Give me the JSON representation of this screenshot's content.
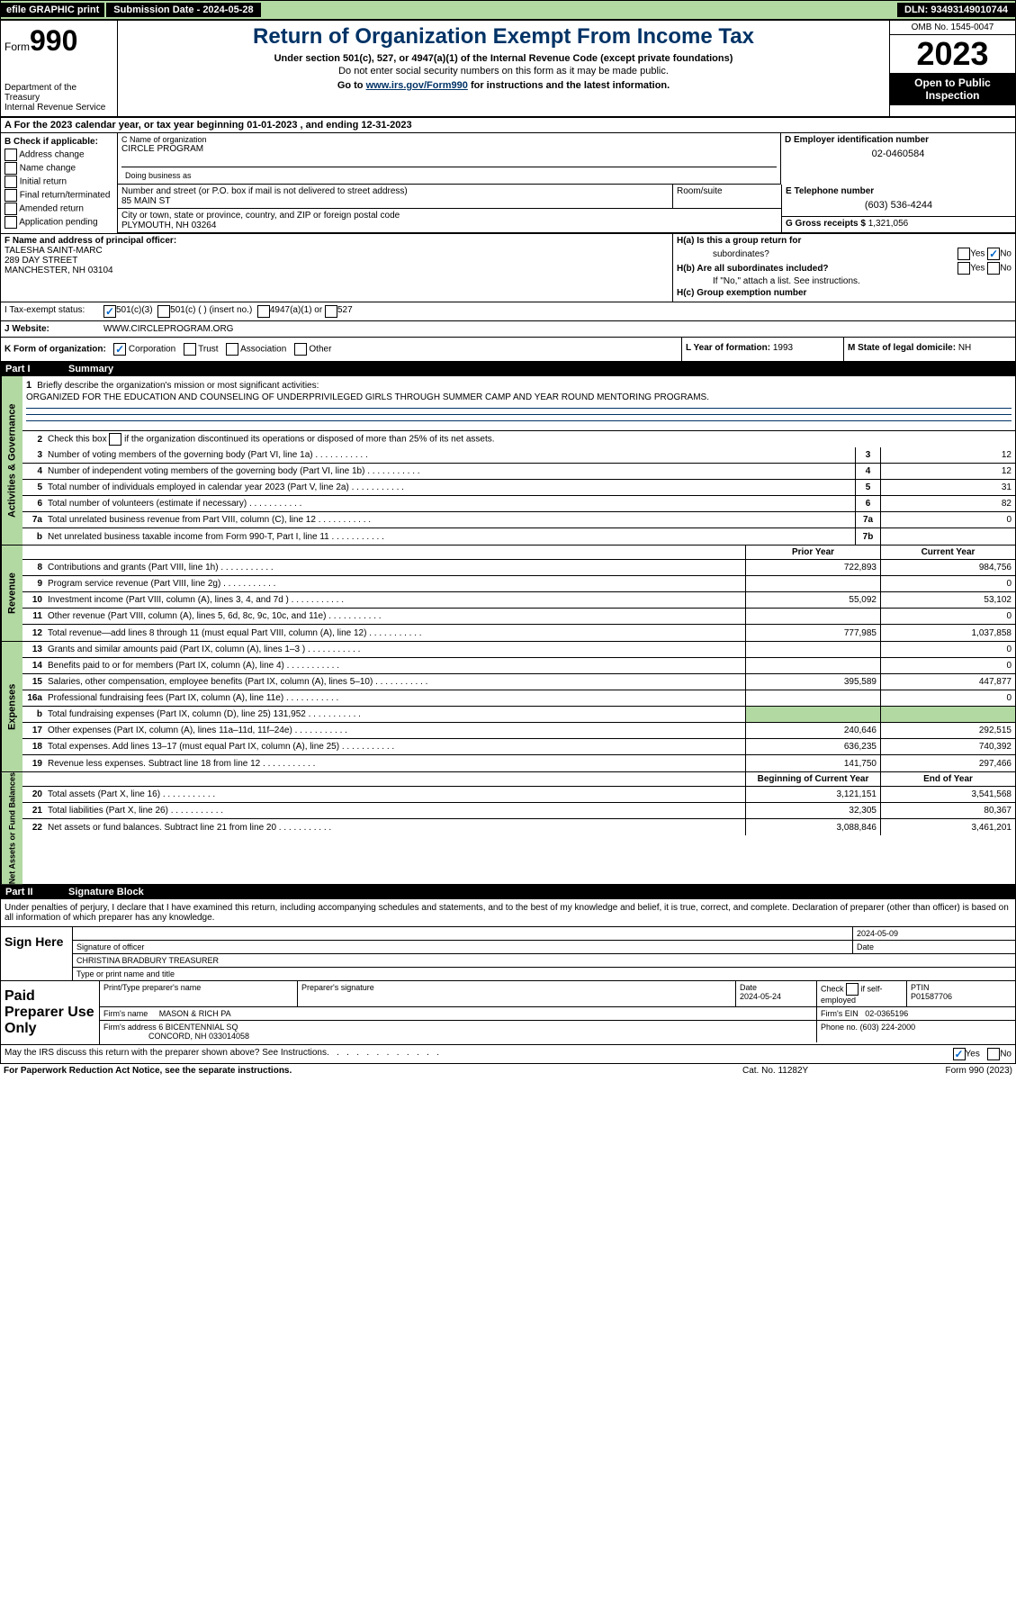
{
  "topbar": {
    "efile": "efile GRAPHIC print",
    "submission": "Submission Date - 2024-05-28",
    "dln": "DLN: 93493149010744"
  },
  "header": {
    "form_prefix": "Form",
    "form_num": "990",
    "title": "Return of Organization Exempt From Income Tax",
    "subtitle": "Under section 501(c), 527, or 4947(a)(1) of the Internal Revenue Code (except private foundations)",
    "ssn_note": "Do not enter social security numbers on this form as it may be made public.",
    "goto_pre": "Go to ",
    "goto_link": "www.irs.gov/Form990",
    "goto_post": " for instructions and the latest information.",
    "dept": "Department of the Treasury",
    "irs": "Internal Revenue Service",
    "omb": "OMB No. 1545-0047",
    "year": "2023",
    "open": "Open to Public Inspection"
  },
  "section_a": {
    "pre": "A  For the 2023 calendar year, or tax year beginning ",
    "begin": "01-01-2023",
    "mid": " , and ending ",
    "end": "12-31-2023"
  },
  "col_b": {
    "title": "B Check if applicable:",
    "items": [
      "Address change",
      "Name change",
      "Initial return",
      "Final return/terminated",
      "Amended return",
      "Application pending"
    ]
  },
  "col_c": {
    "name_lbl": "C Name of organization",
    "name_val": "CIRCLE PROGRAM",
    "dba_lbl": "Doing business as",
    "street_lbl": "Number and street (or P.O. box if mail is not delivered to street address)",
    "street_val": "85 MAIN ST",
    "suite_lbl": "Room/suite",
    "city_lbl": "City or town, state or province, country, and ZIP or foreign postal code",
    "city_val": "PLYMOUTH, NH  03264"
  },
  "col_d": {
    "lbl": "D Employer identification number",
    "val": "02-0460584"
  },
  "col_e": {
    "lbl": "E Telephone number",
    "val": "(603) 536-4244"
  },
  "col_g": {
    "lbl": "G Gross receipts $",
    "val": "1,321,056"
  },
  "col_f": {
    "lbl": "F  Name and address of principal officer:",
    "name": "TALESHA SAINT-MARC",
    "street": "289 DAY STREET",
    "city": "MANCHESTER, NH  03104"
  },
  "col_h": {
    "ha": "H(a)  Is this a group return for",
    "ha2": "subordinates?",
    "hb": "H(b)  Are all subordinates included?",
    "hb_note": "If \"No,\" attach a list. See instructions.",
    "hc": "H(c)  Group exemption number",
    "yes": "Yes",
    "no": "No"
  },
  "tax_status": {
    "lbl": "I    Tax-exempt status:",
    "o1": "501(c)(3)",
    "o2": "501(c) (  ) (insert no.)",
    "o3": "4947(a)(1) or",
    "o4": "527"
  },
  "website": {
    "lbl": "J   Website:",
    "val": "WWW.CIRCLEPROGRAM.ORG"
  },
  "row_k": {
    "lbl": "K Form of organization:",
    "corp": "Corporation",
    "trust": "Trust",
    "assoc": "Association",
    "other": "Other"
  },
  "row_l": {
    "lbl": "L Year of formation:",
    "val": "1993"
  },
  "row_m": {
    "lbl": "M State of legal domicile:",
    "val": "NH"
  },
  "part1": {
    "num": "Part I",
    "title": "Summary"
  },
  "mission": {
    "num": "1",
    "intro": "Briefly describe the organization's mission or most significant activities:",
    "text": "ORGANIZED FOR THE EDUCATION AND COUNSELING OF UNDERPRIVILEGED GIRLS THROUGH SUMMER CAMP AND YEAR ROUND MENTORING PROGRAMS."
  },
  "line2": {
    "num": "2",
    "txt": "Check this box",
    "txt2": "if the organization discontinued its operations or disposed of more than 25% of its net assets."
  },
  "lines_gov": [
    {
      "num": "3",
      "txt": "Number of voting members of the governing body (Part VI, line 1a)",
      "box": "3",
      "val": "12"
    },
    {
      "num": "4",
      "txt": "Number of independent voting members of the governing body (Part VI, line 1b)",
      "box": "4",
      "val": "12"
    },
    {
      "num": "5",
      "txt": "Total number of individuals employed in calendar year 2023 (Part V, line 2a)",
      "box": "5",
      "val": "31"
    },
    {
      "num": "6",
      "txt": "Total number of volunteers (estimate if necessary)",
      "box": "6",
      "val": "82"
    },
    {
      "num": "7a",
      "txt": "Total unrelated business revenue from Part VIII, column (C), line 12",
      "box": "7a",
      "val": "0"
    },
    {
      "num": "b",
      "txt": "Net unrelated business taxable income from Form 990-T, Part I, line 11",
      "box": "7b",
      "val": ""
    }
  ],
  "col_hdrs": {
    "prior": "Prior Year",
    "current": "Current Year"
  },
  "revenue": [
    {
      "num": "8",
      "txt": "Contributions and grants (Part VIII, line 1h)",
      "prior": "722,893",
      "current": "984,756"
    },
    {
      "num": "9",
      "txt": "Program service revenue (Part VIII, line 2g)",
      "prior": "",
      "current": "0"
    },
    {
      "num": "10",
      "txt": "Investment income (Part VIII, column (A), lines 3, 4, and 7d )",
      "prior": "55,092",
      "current": "53,102"
    },
    {
      "num": "11",
      "txt": "Other revenue (Part VIII, column (A), lines 5, 6d, 8c, 9c, 10c, and 11e)",
      "prior": "",
      "current": "0"
    },
    {
      "num": "12",
      "txt": "Total revenue—add lines 8 through 11 (must equal Part VIII, column (A), line 12)",
      "prior": "777,985",
      "current": "1,037,858"
    }
  ],
  "expenses": [
    {
      "num": "13",
      "txt": "Grants and similar amounts paid (Part IX, column (A), lines 1–3 )",
      "prior": "",
      "current": "0"
    },
    {
      "num": "14",
      "txt": "Benefits paid to or for members (Part IX, column (A), line 4)",
      "prior": "",
      "current": "0"
    },
    {
      "num": "15",
      "txt": "Salaries, other compensation, employee benefits (Part IX, column (A), lines 5–10)",
      "prior": "395,589",
      "current": "447,877"
    },
    {
      "num": "16a",
      "txt": "Professional fundraising fees (Part IX, column (A), line 11e)",
      "prior": "",
      "current": "0"
    },
    {
      "num": "b",
      "txt": "Total fundraising expenses (Part IX, column (D), line 25) 131,952",
      "prior": "SHADE",
      "current": "SHADE"
    },
    {
      "num": "17",
      "txt": "Other expenses (Part IX, column (A), lines 11a–11d, 11f–24e)",
      "prior": "240,646",
      "current": "292,515"
    },
    {
      "num": "18",
      "txt": "Total expenses. Add lines 13–17 (must equal Part IX, column (A), line 25)",
      "prior": "636,235",
      "current": "740,392"
    },
    {
      "num": "19",
      "txt": "Revenue less expenses. Subtract line 18 from line 12",
      "prior": "141,750",
      "current": "297,466"
    }
  ],
  "net_hdr": {
    "begin": "Beginning of Current Year",
    "end": "End of Year"
  },
  "net": [
    {
      "num": "20",
      "txt": "Total assets (Part X, line 16)",
      "prior": "3,121,151",
      "current": "3,541,568"
    },
    {
      "num": "21",
      "txt": "Total liabilities (Part X, line 26)",
      "prior": "32,305",
      "current": "80,367"
    },
    {
      "num": "22",
      "txt": "Net assets or fund balances. Subtract line 21 from line 20",
      "prior": "3,088,846",
      "current": "3,461,201"
    }
  ],
  "part2": {
    "num": "Part II",
    "title": "Signature Block"
  },
  "sig_intro": "Under penalties of perjury, I declare that I have examined this return, including accompanying schedules and statements, and to the best of my knowledge and belief, it is true, correct, and complete. Declaration of preparer (other than officer) is based on all information of which preparer has any knowledge.",
  "sign": {
    "here": "Sign Here",
    "sig_lbl": "Signature of officer",
    "date_lbl": "Date",
    "date_val": "2024-05-09",
    "name": "CHRISTINA BRADBURY TREASURER",
    "name_lbl": "Type or print name and title"
  },
  "paid": {
    "title": "Paid Preparer Use Only",
    "r1": {
      "c1": "Print/Type preparer's name",
      "c2": "Preparer's signature",
      "c3": "Date",
      "c3v": "2024-05-24",
      "c4": "Check",
      "c4b": "if self-employed",
      "c5": "PTIN",
      "c5v": "P01587706"
    },
    "r2": {
      "c1": "Firm's name",
      "c1v": "MASON & RICH PA",
      "c2": "Firm's EIN",
      "c2v": "02-0365196"
    },
    "r3": {
      "c1": "Firm's address",
      "c1v": "6 BICENTENNIAL SQ",
      "c1v2": "CONCORD, NH  033014058",
      "c2": "Phone no.",
      "c2v": "(603) 224-2000"
    }
  },
  "irs_discuss": {
    "txt": "May the IRS discuss this return with the preparer shown above? See Instructions.",
    "yes": "Yes",
    "no": "No"
  },
  "footer": {
    "l": "For Paperwork Reduction Act Notice, see the separate instructions.",
    "m": "Cat. No. 11282Y",
    "r": "Form 990 (2023)"
  },
  "side_labels": {
    "gov": "Activities & Governance",
    "rev": "Revenue",
    "exp": "Expenses",
    "net": "Net Assets or Fund Balances"
  }
}
